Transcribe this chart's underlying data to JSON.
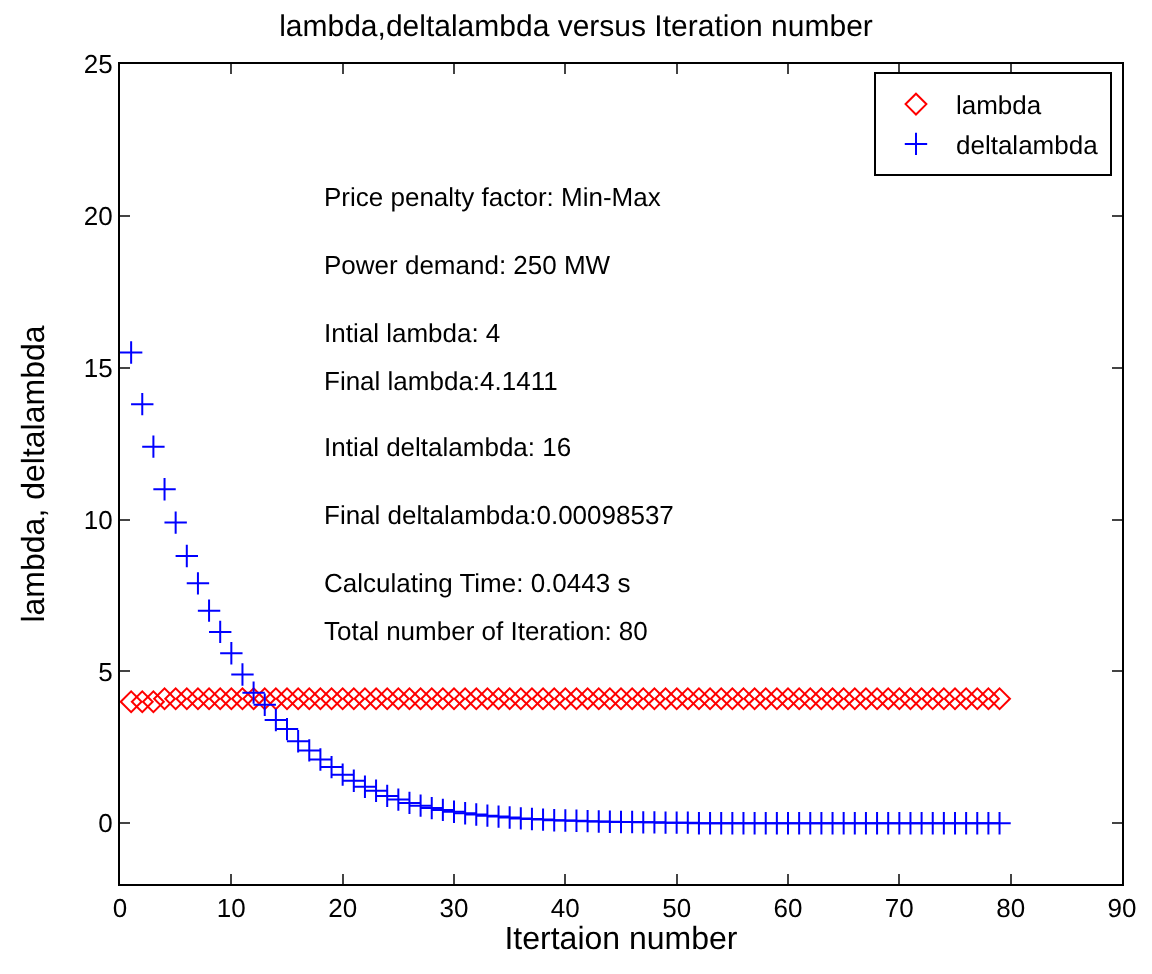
{
  "chart_data": {
    "type": "scatter",
    "title": "lambda,deltalambda versus Iteration number",
    "xlabel": "Itertaion number",
    "ylabel": "lambda, deltalambda",
    "x": [
      1,
      2,
      3,
      4,
      5,
      6,
      7,
      8,
      9,
      10,
      11,
      12,
      13,
      14,
      15,
      16,
      17,
      18,
      19,
      20,
      21,
      22,
      23,
      24,
      25,
      26,
      27,
      28,
      29,
      30,
      31,
      32,
      33,
      34,
      35,
      36,
      37,
      38,
      39,
      40,
      41,
      42,
      43,
      44,
      45,
      46,
      47,
      48,
      49,
      50,
      51,
      52,
      53,
      54,
      55,
      56,
      57,
      58,
      59,
      60,
      61,
      62,
      63,
      64,
      65,
      66,
      67,
      68,
      69,
      70,
      71,
      72,
      73,
      74,
      75,
      76,
      77,
      78,
      79
    ],
    "series": [
      {
        "name": "lambda",
        "color": "#ff0000",
        "marker": "diamond",
        "values": [
          4.0,
          4.0,
          4.0,
          4.1,
          4.1,
          4.1,
          4.1,
          4.1,
          4.1,
          4.1,
          4.1,
          4.1,
          4.1,
          4.1,
          4.1,
          4.1,
          4.1,
          4.1,
          4.1,
          4.1,
          4.1,
          4.1,
          4.1,
          4.1,
          4.1,
          4.1,
          4.1,
          4.1,
          4.1,
          4.1,
          4.1,
          4.1,
          4.1,
          4.1,
          4.1,
          4.1,
          4.1,
          4.1,
          4.1,
          4.1,
          4.1,
          4.1,
          4.1,
          4.1,
          4.1,
          4.1,
          4.1,
          4.1,
          4.1,
          4.1,
          4.1,
          4.1,
          4.1,
          4.1,
          4.1,
          4.1,
          4.1,
          4.1,
          4.1,
          4.1,
          4.1,
          4.1,
          4.1,
          4.1,
          4.1,
          4.1,
          4.1,
          4.1,
          4.1,
          4.1,
          4.1,
          4.1,
          4.1,
          4.1,
          4.1,
          4.1,
          4.1,
          4.1,
          4.1
        ]
      },
      {
        "name": "deltalambda",
        "color": "#0000ff",
        "marker": "cross",
        "values": [
          15.5,
          13.8,
          12.4,
          11.0,
          9.9,
          8.8,
          7.9,
          7.0,
          6.3,
          5.6,
          4.9,
          4.3,
          3.9,
          3.4,
          3.1,
          2.7,
          2.4,
          2.1,
          1.85,
          1.6,
          1.4,
          1.2,
          1.07,
          0.9,
          0.78,
          0.67,
          0.58,
          0.5,
          0.44,
          0.38,
          0.33,
          0.29,
          0.25,
          0.22,
          0.19,
          0.16,
          0.14,
          0.12,
          0.1,
          0.09,
          0.08,
          0.07,
          0.06,
          0.05,
          0.04,
          0.04,
          0.03,
          0.03,
          0.02,
          0.02,
          0.02,
          0,
          0,
          0,
          0,
          0,
          0,
          0,
          0,
          0,
          0,
          0,
          0,
          0,
          0,
          0,
          0,
          0,
          0,
          0,
          0,
          0,
          0,
          0,
          0,
          0,
          0,
          0,
          0
        ]
      }
    ],
    "annotations": [
      "Price penalty factor: Min-Max",
      "Power demand: 250 MW",
      "Intial lambda: 4",
      "Final lambda:4.1411",
      "Intial deltalambda: 16",
      "Final deltalambda:0.00098537",
      "Calculating Time: 0.0443 s",
      "Total number of Iteration: 80"
    ],
    "xlim": [
      0,
      90
    ],
    "xticks": [
      0,
      10,
      20,
      30,
      40,
      50,
      60,
      70,
      80,
      90
    ],
    "ylim": [
      -2,
      25
    ],
    "yticks": [
      0,
      5,
      10,
      15,
      20,
      25
    ],
    "grid": false,
    "legend": "top right"
  }
}
